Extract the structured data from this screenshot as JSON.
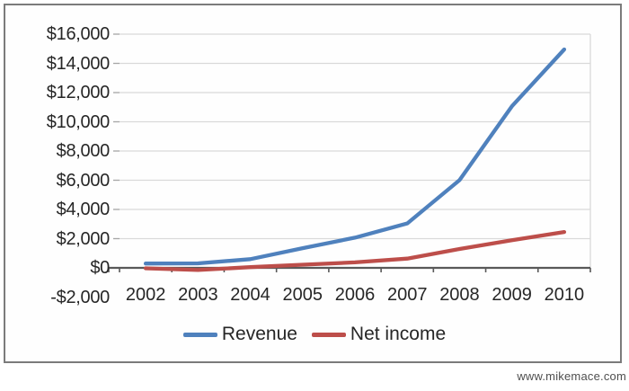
{
  "watermark": "www.mikemace.com",
  "colors": {
    "revenue_line": "#4f81bd",
    "net_income_line": "#bd4e4a",
    "gridline": "#d9d9d9",
    "plot_right_border": "#d9d9d9",
    "axis_line": "#595959",
    "tick_mark": "#a6a6a6",
    "text": "#262626",
    "frame_border": "#7b7b7b",
    "watermark_text": "#4f4f4f"
  },
  "chart_data": {
    "type": "line",
    "title": "",
    "xlabel": "",
    "ylabel": "",
    "categories": [
      "2002",
      "2003",
      "2004",
      "2005",
      "2006",
      "2007",
      "2008",
      "2009",
      "2010"
    ],
    "series": [
      {
        "name": "Revenue",
        "color": "#4f81bd",
        "values": [
          294,
          307,
          595,
          1350,
          2066,
          3037,
          6009,
          11065,
          14953
        ]
      },
      {
        "name": "Net income",
        "color": "#bd4e4a",
        "values": [
          -28,
          -149,
          52,
          213,
          375,
          632,
          1294,
          1893,
          2457
        ]
      }
    ],
    "y_axis": {
      "min": -2000,
      "max": 16000,
      "step": 2000,
      "tick_labels": [
        "-$2,000",
        "$0",
        "$2,000",
        "$4,000",
        "$6,000",
        "$8,000",
        "$10,000",
        "$12,000",
        "$14,000",
        "$16,000"
      ]
    },
    "grid": true,
    "legend_position": "bottom"
  }
}
